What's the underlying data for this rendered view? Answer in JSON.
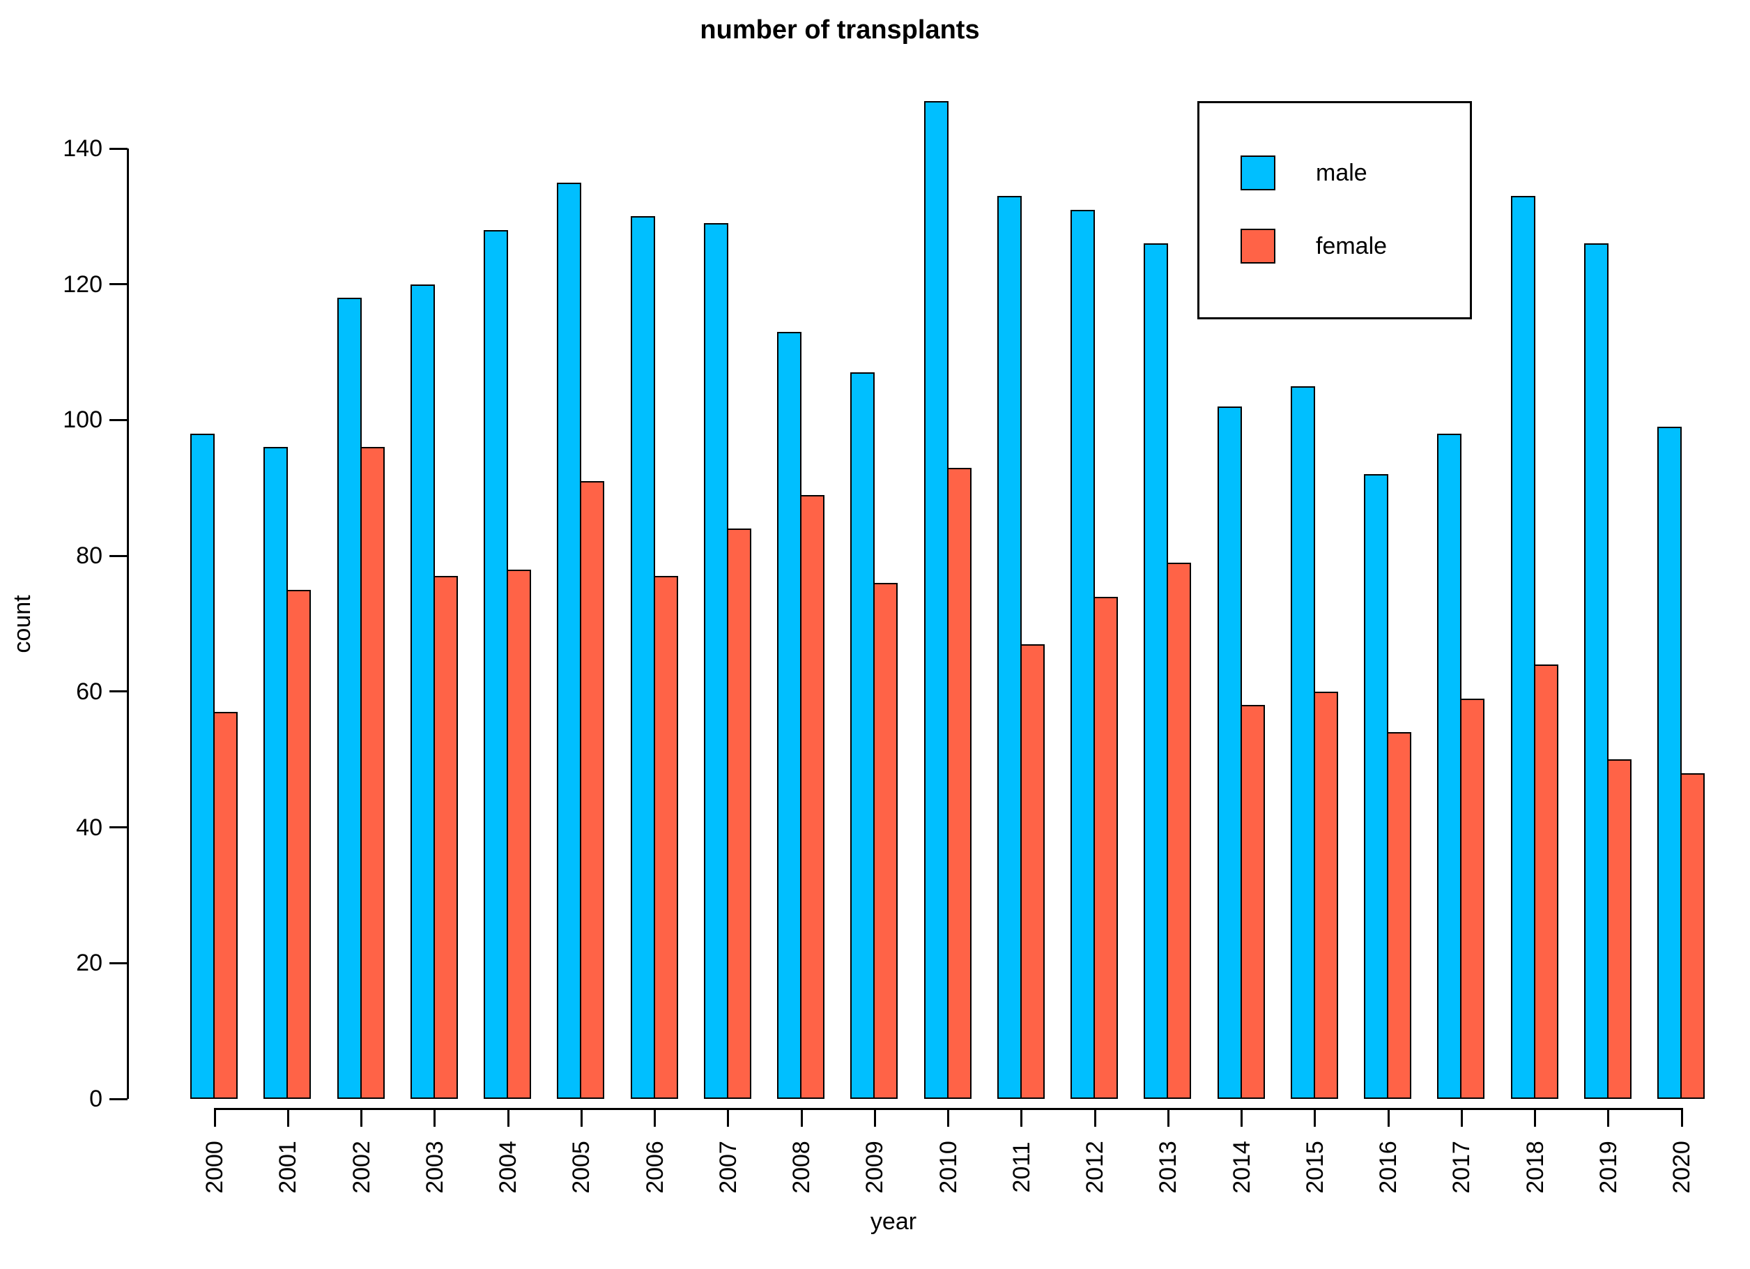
{
  "title": "number of transplants",
  "chart_data": {
    "type": "bar",
    "title": "number of transplants",
    "xlabel": "year",
    "ylabel": "count",
    "categories": [
      "2000",
      "2001",
      "2002",
      "2003",
      "2004",
      "2005",
      "2006",
      "2007",
      "2008",
      "2009",
      "2010",
      "2011",
      "2012",
      "2013",
      "2014",
      "2015",
      "2016",
      "2017",
      "2018",
      "2019",
      "2020"
    ],
    "series": [
      {
        "name": "male",
        "color": "#00BFFF",
        "values": [
          98,
          96,
          118,
          120,
          128,
          135,
          130,
          129,
          113,
          107,
          147,
          133,
          131,
          126,
          102,
          105,
          92,
          98,
          133,
          126,
          99
        ]
      },
      {
        "name": "female",
        "color": "#FF6347",
        "values": [
          57,
          75,
          96,
          77,
          78,
          91,
          77,
          84,
          89,
          76,
          93,
          67,
          74,
          79,
          58,
          60,
          54,
          59,
          64,
          50,
          48
        ]
      }
    ],
    "ylim": [
      0,
      140
    ],
    "yticks": [
      0,
      20,
      40,
      60,
      80,
      100,
      120,
      140
    ],
    "grid": false,
    "legend": {
      "position": "top-right",
      "entries": [
        "male",
        "female"
      ]
    },
    "bar_outline_color": "#000000",
    "axis_color": "#000000",
    "background": "#FFFFFF"
  }
}
